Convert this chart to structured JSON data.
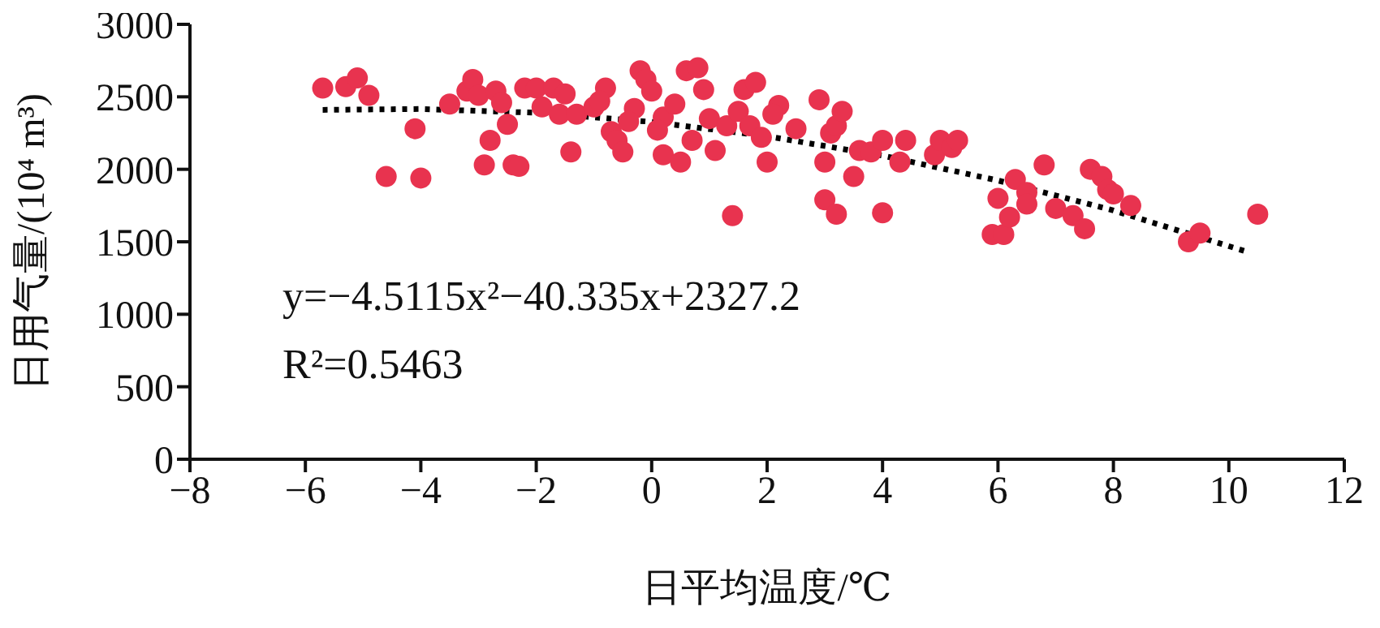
{
  "chart_data": {
    "type": "scatter",
    "xlabel": "日平均温度/℃",
    "ylabel": "日用气量/(10⁴ m³)",
    "xlim": [
      -8,
      12
    ],
    "xticks": [
      {
        "value": -8,
        "label": "−8"
      },
      {
        "value": -6,
        "label": "−6"
      },
      {
        "value": -4,
        "label": "−4"
      },
      {
        "value": -2,
        "label": "−2"
      },
      0,
      2,
      4,
      6,
      8,
      10,
      12
    ],
    "ylim": [
      0,
      3000
    ],
    "yticks": [
      0,
      500,
      1000,
      1500,
      2000,
      2500,
      3000
    ],
    "grid": false,
    "legend": false,
    "marker": "circle",
    "annotations": [
      "y=−4.5115x²−40.335x+2327.2",
      "R²=0.5463"
    ],
    "series": [
      {
        "type": "scatter",
        "color": "#e8334f",
        "x": [
          -5.7,
          -5.3,
          -5.1,
          -4.9,
          -4.6,
          -4.1,
          -4.0,
          -3.5,
          -3.2,
          -3.1,
          -3.0,
          -2.9,
          -2.8,
          -2.7,
          -2.6,
          -2.5,
          -2.4,
          -2.3,
          -2.2,
          -2.0,
          -1.9,
          -1.7,
          -1.6,
          -1.5,
          -1.3,
          -1.0,
          -0.8,
          -0.7,
          -0.6,
          -0.5,
          -0.3,
          -0.2,
          -0.1,
          0.0,
          0.2,
          0.2,
          0.4,
          0.5,
          0.6,
          0.7,
          0.8,
          0.9,
          1.0,
          1.1,
          1.3,
          1.5,
          1.6,
          1.4,
          1.7,
          1.9,
          2.0,
          2.2,
          2.5,
          2.9,
          3.0,
          3.1,
          3.2,
          3.3,
          3.0,
          3.2,
          3.5,
          3.6,
          3.8,
          4.0,
          4.0,
          4.3,
          4.4,
          4.9,
          5.0,
          5.2,
          5.9,
          6.0,
          6.1,
          6.3,
          6.5,
          6.5,
          6.8,
          7.0,
          7.3,
          7.6,
          7.8,
          7.9,
          8.0,
          8.3,
          9.3,
          9.5,
          10.5,
          -0.9,
          -0.4,
          1.8,
          2.1,
          0.1,
          -1.4,
          5.3,
          6.2,
          7.5
        ],
        "values": [
          2560,
          2570,
          2630,
          2510,
          1950,
          2280,
          1940,
          2450,
          2540,
          2620,
          2510,
          2030,
          2200,
          2540,
          2460,
          2310,
          2030,
          2020,
          2560,
          2560,
          2430,
          2560,
          2380,
          2520,
          2380,
          2430,
          2560,
          2260,
          2200,
          2120,
          2420,
          2680,
          2620,
          2540,
          2360,
          2100,
          2450,
          2050,
          2680,
          2200,
          2700,
          2550,
          2350,
          2130,
          2300,
          2400,
          2550,
          1680,
          2300,
          2220,
          2050,
          2440,
          2280,
          2480,
          2050,
          2250,
          2300,
          2400,
          1790,
          1690,
          1950,
          2130,
          2120,
          2200,
          1700,
          2050,
          2200,
          2100,
          2200,
          2150,
          1550,
          1800,
          1550,
          1930,
          1840,
          1760,
          2030,
          1730,
          1680,
          2000,
          1950,
          1860,
          1830,
          1750,
          1500,
          1560,
          1690,
          2470,
          2330,
          2600,
          2380,
          2270,
          2120,
          2200,
          1670,
          1590
        ]
      },
      {
        "type": "line",
        "color": "#000000",
        "line_style": "dotted",
        "marker": "none",
        "x": [
          -5.7,
          -4,
          -2,
          0,
          2,
          4,
          6,
          8,
          10.3
        ],
        "values": [
          2410,
          2416,
          2390,
          2327,
          2228,
          2094,
          1923,
          1716,
          1433
        ]
      }
    ]
  }
}
